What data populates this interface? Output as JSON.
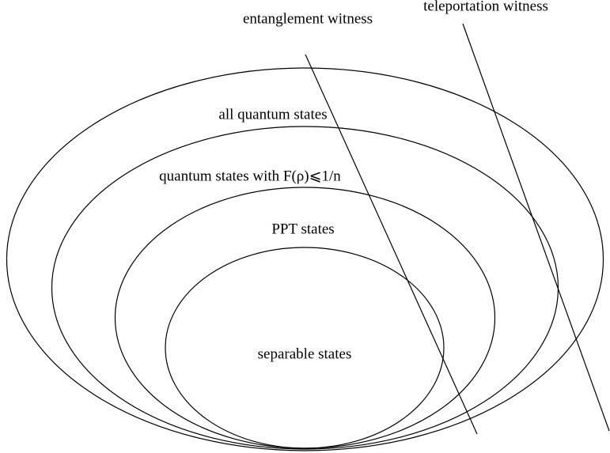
{
  "labels": {
    "entanglement_witness": "entanglement witness",
    "teleportation_witness": "teleportation witness",
    "all_states": "all quantum states",
    "fidelity_states": "quantum states with F(ρ)⩽1/n",
    "ppt_states": "PPT states",
    "separable_states": "separable states"
  }
}
